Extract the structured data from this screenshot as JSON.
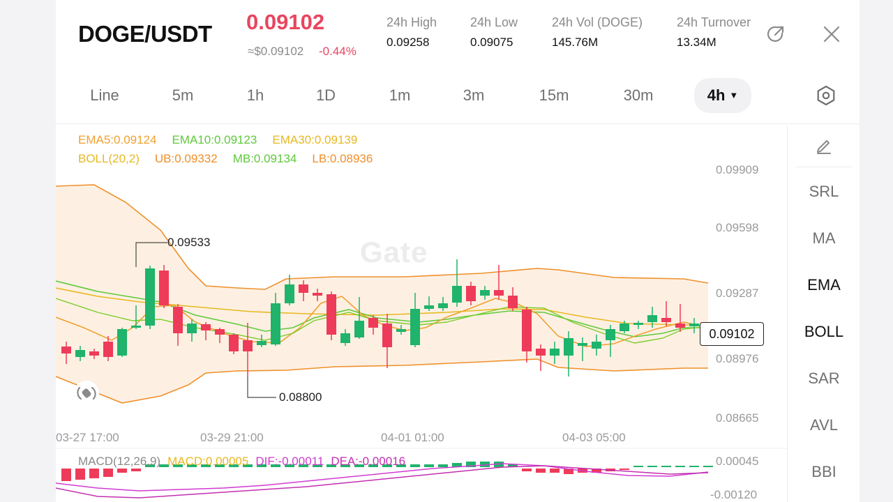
{
  "header": {
    "pair": "DOGE/USDT",
    "last_price": "0.09102",
    "fiat_price": "≈$0.09102",
    "change_pct": "-0.44%",
    "stats": [
      {
        "label": "24h   High",
        "value": "0.09258"
      },
      {
        "label": "24h   Low",
        "value": "0.09075"
      },
      {
        "label": "24h   Vol (DOGE)",
        "value": "145.76M"
      },
      {
        "label": "24h   Turnover",
        "value": "13.34M"
      }
    ],
    "icons": [
      "share-icon",
      "close-icon"
    ]
  },
  "tabs": [
    {
      "label": "Line"
    },
    {
      "label": "5m"
    },
    {
      "label": "1h"
    },
    {
      "label": "1D"
    },
    {
      "label": "1m"
    },
    {
      "label": "3m"
    },
    {
      "label": "15m"
    },
    {
      "label": "30m"
    },
    {
      "label": "4h",
      "active": true
    }
  ],
  "legend": {
    "ema5": "EMA5:0.09124",
    "ema10": "EMA10:0.09123",
    "ema30": "EMA30:0.09139",
    "boll": "BOLL(20,2)",
    "ub": "UB:0.09332",
    "mb": "MB:0.09134",
    "lb": "LB:0.08936"
  },
  "chart": {
    "watermark": "Gate",
    "current_price_tag": "0.09102",
    "high_marker": "0.09533",
    "low_marker": "0.08800",
    "y_ticks": [
      "0.09909",
      "0.09598",
      "0.09287",
      "0.08976",
      "0.08665"
    ],
    "x_ticks": [
      "03-27 17:00",
      "03-29 21:00",
      "04-01 01:00",
      "04-03 05:00"
    ],
    "macd_y_ticks": [
      "0.00045",
      "-0.00120"
    ]
  },
  "macd_legend": {
    "name": "MACD(12,26,9)",
    "macd": "MACD:0.00005",
    "dif": "DIF:-0.00011",
    "dea": "DEA:-0.00016"
  },
  "side_panel": {
    "items": [
      "SRL",
      "MA",
      "EMA",
      "BOLL",
      "SAR",
      "AVL",
      "BBI"
    ]
  },
  "colors": {
    "up": "#1fb36b",
    "down": "#ee3b59",
    "ema5": "#f0a030",
    "ema10": "#5fc93a",
    "ema30": "#e8b820",
    "boll": "#ef8f2a",
    "band_fill": "#fdf0e2",
    "dif": "#d13bd0",
    "dea": "#e8455f"
  }
}
